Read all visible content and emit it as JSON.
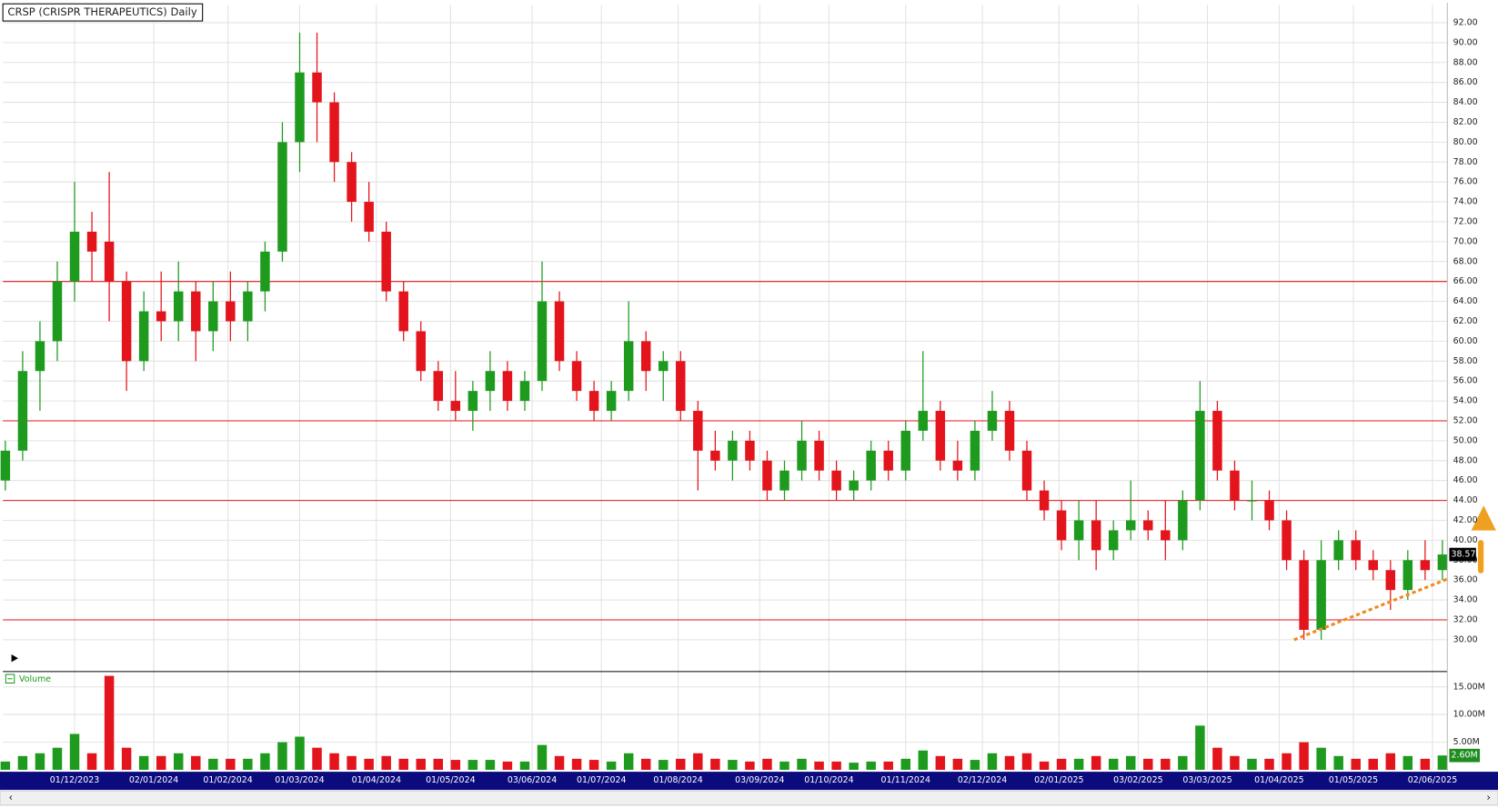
{
  "chart_data": {
    "type": "candlestick",
    "title": "CRSP (CRISPR THERAPEUTICS) Daily",
    "up_color": "#1e9b1e",
    "down_color": "#e3141c",
    "grid": true,
    "x": [
      "2023-11-03",
      "2023-11-10",
      "2023-11-17",
      "2023-11-24",
      "2023-12-01",
      "2023-12-08",
      "2023-12-15",
      "2023-12-22",
      "2023-12-29",
      "2024-01-05",
      "2024-01-12",
      "2024-01-19",
      "2024-01-26",
      "2024-02-02",
      "2024-02-09",
      "2024-02-16",
      "2024-02-23",
      "2024-03-01",
      "2024-03-08",
      "2024-03-15",
      "2024-03-22",
      "2024-03-29",
      "2024-04-05",
      "2024-04-12",
      "2024-04-19",
      "2024-04-26",
      "2024-05-03",
      "2024-05-10",
      "2024-05-17",
      "2024-05-24",
      "2024-05-31",
      "2024-06-07",
      "2024-06-14",
      "2024-06-21",
      "2024-06-28",
      "2024-07-05",
      "2024-07-12",
      "2024-07-19",
      "2024-07-26",
      "2024-08-02",
      "2024-08-09",
      "2024-08-16",
      "2024-08-23",
      "2024-08-30",
      "2024-09-06",
      "2024-09-13",
      "2024-09-20",
      "2024-09-27",
      "2024-10-04",
      "2024-10-11",
      "2024-10-18",
      "2024-10-25",
      "2024-11-01",
      "2024-11-08",
      "2024-11-15",
      "2024-11-22",
      "2024-11-29",
      "2024-12-06",
      "2024-12-13",
      "2024-12-20",
      "2024-12-27",
      "2025-01-03",
      "2025-01-10",
      "2025-01-17",
      "2025-01-24",
      "2025-01-31",
      "2025-02-07",
      "2025-02-14",
      "2025-02-21",
      "2025-02-28",
      "2025-03-07",
      "2025-03-14",
      "2025-03-21",
      "2025-03-28",
      "2025-04-04",
      "2025-04-11",
      "2025-04-18",
      "2025-04-25",
      "2025-05-02",
      "2025-05-09",
      "2025-05-16",
      "2025-05-23",
      "2025-05-30",
      "2025-06-06"
    ],
    "open": [
      46,
      49,
      57,
      60,
      66,
      71,
      70,
      66,
      58,
      63,
      62,
      65,
      61,
      64,
      62,
      65,
      69,
      80,
      87,
      84,
      78,
      74,
      71,
      65,
      61,
      57,
      54,
      53,
      55,
      57,
      54,
      56,
      64,
      58,
      55,
      53,
      55,
      60,
      57,
      58,
      53,
      49,
      48,
      50,
      48,
      45,
      47,
      50,
      47,
      45,
      46,
      49,
      47,
      51,
      53,
      48,
      47,
      51,
      53,
      49,
      45,
      43,
      40,
      42,
      39,
      41,
      42,
      41,
      40,
      44,
      53,
      47,
      44,
      44,
      42,
      38,
      31,
      38,
      40,
      38,
      37,
      35,
      38,
      37
    ],
    "high": [
      50,
      59,
      62,
      68,
      76,
      73,
      77,
      67,
      65,
      67,
      68,
      66,
      66,
      67,
      66,
      70,
      82,
      91,
      91,
      85,
      79,
      76,
      72,
      66,
      62,
      58,
      57,
      56,
      59,
      58,
      57,
      68,
      65,
      59,
      56,
      56,
      64,
      61,
      59,
      59,
      54,
      51,
      51,
      51,
      49,
      48,
      52,
      51,
      48,
      47,
      50,
      50,
      52,
      59,
      54,
      50,
      52,
      55,
      54,
      50,
      46,
      44,
      44,
      44,
      42,
      46,
      43,
      44,
      45,
      56,
      54,
      48,
      46,
      45,
      43,
      39,
      40,
      41,
      41,
      39,
      38,
      39,
      40,
      40
    ],
    "low": [
      45,
      48,
      53,
      58,
      64,
      66,
      62,
      55,
      57,
      60,
      60,
      58,
      59,
      60,
      60,
      63,
      68,
      77,
      80,
      76,
      72,
      70,
      64,
      60,
      56,
      53,
      52,
      51,
      53,
      53,
      53,
      55,
      57,
      54,
      52,
      52,
      54,
      55,
      54,
      52,
      45,
      47,
      46,
      47,
      44,
      44,
      46,
      46,
      44,
      44,
      45,
      46,
      46,
      50,
      47,
      46,
      46,
      50,
      48,
      44,
      42,
      39,
      38,
      37,
      38,
      40,
      40,
      38,
      39,
      43,
      46,
      43,
      42,
      41,
      37,
      30,
      30,
      37,
      37,
      36,
      33,
      34,
      36,
      36
    ],
    "close": [
      49,
      57,
      60,
      66,
      71,
      69,
      66,
      58,
      63,
      62,
      65,
      61,
      64,
      62,
      65,
      69,
      80,
      87,
      84,
      78,
      74,
      71,
      65,
      61,
      57,
      54,
      53,
      55,
      57,
      54,
      56,
      64,
      58,
      55,
      53,
      55,
      60,
      57,
      58,
      53,
      49,
      48,
      50,
      48,
      45,
      47,
      50,
      47,
      45,
      46,
      49,
      47,
      51,
      53,
      48,
      47,
      51,
      53,
      49,
      45,
      43,
      40,
      42,
      39,
      41,
      42,
      41,
      40,
      44,
      53,
      47,
      44,
      44,
      42,
      38,
      31,
      38,
      40,
      38,
      37,
      35,
      38,
      37,
      38.57
    ],
    "xlim": [
      "2023-11-02",
      "2025-06-08"
    ],
    "xticks": [
      {
        "value": "2023-12-01",
        "label": "01/12/2023"
      },
      {
        "value": "2024-01-02",
        "label": "02/01/2024"
      },
      {
        "value": "2024-02-01",
        "label": "01/02/2024"
      },
      {
        "value": "2024-03-01",
        "label": "01/03/2024"
      },
      {
        "value": "2024-04-01",
        "label": "01/04/2024"
      },
      {
        "value": "2024-05-01",
        "label": "01/05/2024"
      },
      {
        "value": "2024-06-03",
        "label": "03/06/2024"
      },
      {
        "value": "2024-07-01",
        "label": "01/07/2024"
      },
      {
        "value": "2024-08-01",
        "label": "01/08/2024"
      },
      {
        "value": "2024-09-03",
        "label": "03/09/2024"
      },
      {
        "value": "2024-10-01",
        "label": "01/10/2024"
      },
      {
        "value": "2024-11-01",
        "label": "01/11/2024"
      },
      {
        "value": "2024-12-02",
        "label": "02/12/2024"
      },
      {
        "value": "2025-01-02",
        "label": "02/01/2025"
      },
      {
        "value": "2025-02-03",
        "label": "03/02/2025"
      },
      {
        "value": "2025-03-03",
        "label": "03/03/2025"
      },
      {
        "value": "2025-04-01",
        "label": "01/04/2025"
      },
      {
        "value": "2025-05-01",
        "label": "01/05/2025"
      },
      {
        "value": "2025-06-02",
        "label": "02/06/2025"
      }
    ],
    "ylim": [
      26.9,
      93.8
    ],
    "yticks": [
      {
        "value": 30,
        "label": "30.00"
      },
      {
        "value": 32,
        "label": "32.00"
      },
      {
        "value": 34,
        "label": "34.00"
      },
      {
        "value": 36,
        "label": "36.00"
      },
      {
        "value": 38,
        "label": "38.00"
      },
      {
        "value": 40,
        "label": "40.00"
      },
      {
        "value": 42,
        "label": "42.00"
      },
      {
        "value": 44,
        "label": "44.00"
      },
      {
        "value": 46,
        "label": "46.00"
      },
      {
        "value": 48,
        "label": "48.00"
      },
      {
        "value": 50,
        "label": "50.00"
      },
      {
        "value": 52,
        "label": "52.00"
      },
      {
        "value": 54,
        "label": "54.00"
      },
      {
        "value": 56,
        "label": "56.00"
      },
      {
        "value": 58,
        "label": "58.00"
      },
      {
        "value": 60,
        "label": "60.00"
      },
      {
        "value": 62,
        "label": "62.00"
      },
      {
        "value": 64,
        "label": "64.00"
      },
      {
        "value": 66,
        "label": "66.00"
      },
      {
        "value": 68,
        "label": "68.00"
      },
      {
        "value": 70,
        "label": "70.00"
      },
      {
        "value": 72,
        "label": "72.00"
      },
      {
        "value": 74,
        "label": "74.00"
      },
      {
        "value": 76,
        "label": "76.00"
      },
      {
        "value": 78,
        "label": "78.00"
      },
      {
        "value": 80,
        "label": "80.00"
      },
      {
        "value": 82,
        "label": "82.00"
      },
      {
        "value": 84,
        "label": "84.00"
      },
      {
        "value": 86,
        "label": "86.00"
      },
      {
        "value": 88,
        "label": "88.00"
      },
      {
        "value": 90,
        "label": "90.00"
      },
      {
        "value": 92,
        "label": "92.00"
      }
    ],
    "hlines": [
      66,
      52,
      44,
      32
    ],
    "hline_color": "#e3141c",
    "trendline": {
      "x": [
        "2025-04-07",
        "2025-06-08"
      ],
      "y": [
        30,
        36.1
      ],
      "color": "#f08a1e"
    },
    "volume": {
      "name": "Volume",
      "values": [
        1.5,
        2.5,
        3,
        4,
        6.5,
        3,
        17,
        4,
        2.5,
        2.5,
        3,
        2.5,
        2,
        2,
        2,
        3,
        5,
        6,
        4,
        3,
        2.5,
        2,
        2.5,
        2,
        2,
        2,
        1.8,
        1.8,
        1.8,
        1.5,
        1.5,
        4.5,
        2.5,
        2,
        1.8,
        1.5,
        3,
        2,
        1.8,
        2,
        3,
        2,
        1.8,
        1.5,
        2,
        1.5,
        2,
        1.5,
        1.5,
        1.3,
        1.5,
        1.5,
        2,
        3.5,
        2.5,
        2,
        1.8,
        3,
        2.5,
        3,
        1.5,
        2,
        2,
        2.5,
        2,
        2.5,
        2,
        2,
        2.5,
        8,
        4,
        2.5,
        2,
        2,
        3,
        5,
        4,
        2.5,
        2,
        2,
        3,
        2.5,
        2,
        2.6
      ],
      "last_label": "2.60M",
      "ylim": [
        0,
        17.6
      ],
      "yticks": [
        {
          "value": 5,
          "label": "5.00M"
        },
        {
          "value": 10,
          "label": "10.00M"
        },
        {
          "value": 15,
          "label": "15.00M"
        }
      ]
    }
  }
}
